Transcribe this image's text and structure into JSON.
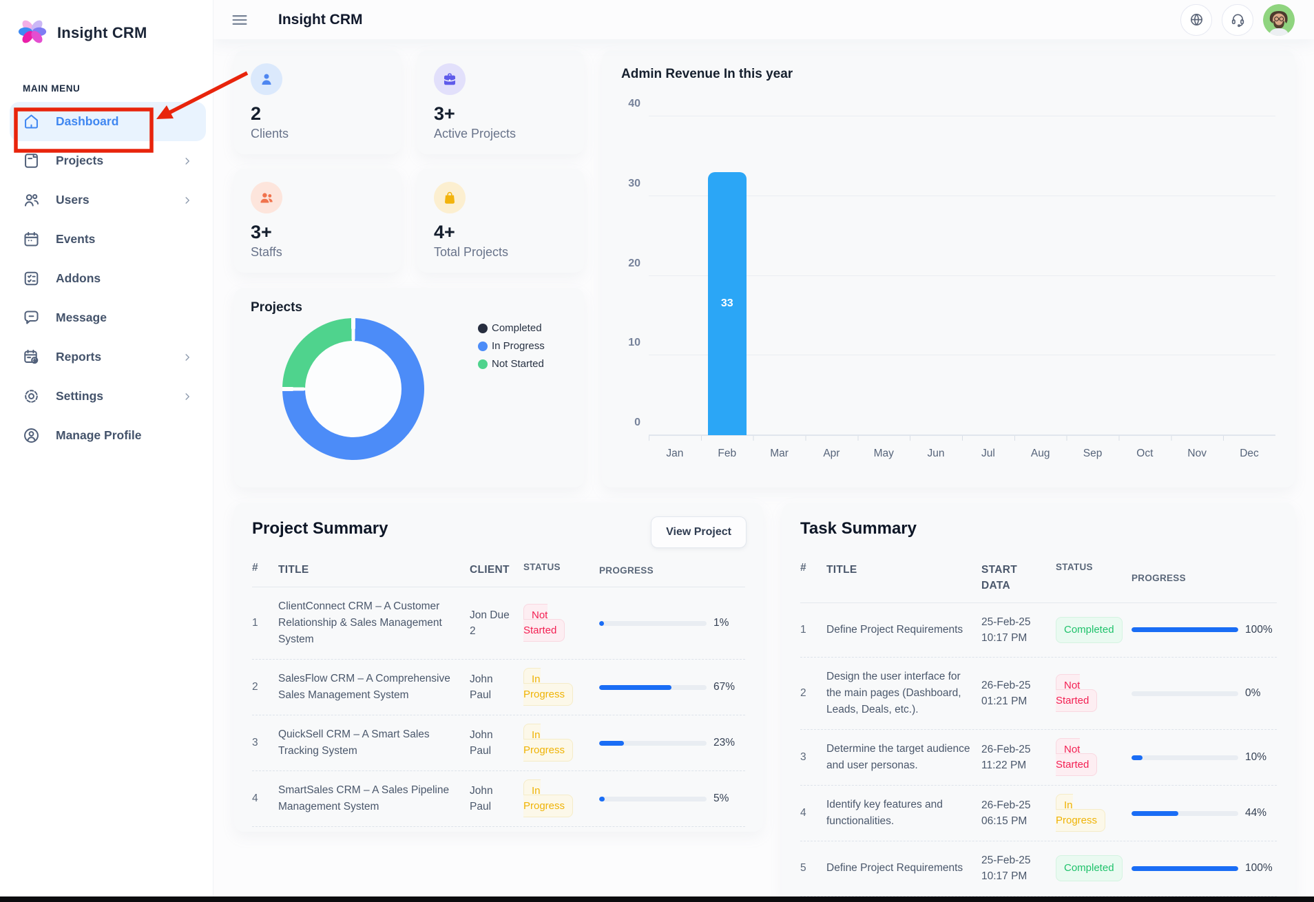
{
  "sidebar": {
    "logo_text": "Insight CRM",
    "section_label": "MAIN MENU",
    "items": [
      {
        "label": "Dashboard",
        "icon": "home",
        "active": true,
        "chevron": false
      },
      {
        "label": "Projects",
        "icon": "note",
        "active": false,
        "chevron": true
      },
      {
        "label": "Users",
        "icon": "users",
        "active": false,
        "chevron": true
      },
      {
        "label": "Events",
        "icon": "calendar",
        "active": false,
        "chevron": false
      },
      {
        "label": "Addons",
        "icon": "checklist",
        "active": false,
        "chevron": false
      },
      {
        "label": "Message",
        "icon": "chat",
        "active": false,
        "chevron": false
      },
      {
        "label": "Reports",
        "icon": "report",
        "active": false,
        "chevron": true
      },
      {
        "label": "Settings",
        "icon": "gear",
        "active": false,
        "chevron": true
      },
      {
        "label": "Manage Profile",
        "icon": "profile",
        "active": false,
        "chevron": false
      }
    ]
  },
  "header": {
    "title": "Insight CRM",
    "icons": [
      "menu-icon",
      "globe-icon",
      "headset-icon",
      "avatar"
    ]
  },
  "stats": [
    {
      "value": "2",
      "label": "Clients",
      "icon": "person",
      "icon_color": "#4e86f0",
      "icon_bg": "#dbe9fc"
    },
    {
      "value": "3+",
      "label": "Active Projects",
      "icon": "briefcase",
      "icon_color": "#5f5bea",
      "icon_bg": "#e2e0fb"
    },
    {
      "value": "3+",
      "label": "Staffs",
      "icon": "people",
      "icon_color": "#f0734d",
      "icon_bg": "#fde5dc"
    },
    {
      "value": "4+",
      "label": "Total Projects",
      "icon": "bag",
      "icon_color": "#f2b30d",
      "icon_bg": "#fcefd0"
    }
  ],
  "chart_data": [
    {
      "type": "pie",
      "donut": true,
      "title": "Projects",
      "labels": [
        "Completed",
        "In Progress",
        "Not Started"
      ],
      "values": [
        0,
        75,
        25
      ],
      "colors": [
        "#272e3f",
        "#4c8cf8",
        "#4fd38d"
      ],
      "legend_position": "right"
    },
    {
      "type": "bar",
      "title": "Admin Revenue In this year",
      "categories": [
        "Jan",
        "Feb",
        "Mar",
        "Apr",
        "May",
        "Jun",
        "Jul",
        "Aug",
        "Sep",
        "Oct",
        "Nov",
        "Dec"
      ],
      "values": [
        0,
        33,
        0,
        0,
        0,
        0,
        0,
        0,
        0,
        0,
        0,
        0
      ],
      "bar_labels": [
        "",
        "33",
        "",
        "",
        "",
        "",
        "",
        "",
        "",
        "",
        "",
        ""
      ],
      "bar_color": "#2ba6f6",
      "ylim": [
        0,
        40
      ],
      "yticks": [
        0,
        10,
        20,
        30,
        40
      ],
      "grid": true,
      "legend_position": "none"
    }
  ],
  "project_summary": {
    "title": "Project Summary",
    "button_label": "View Project",
    "columns": [
      "#",
      "TITLE",
      "CLIENT",
      "STATUS",
      "PROGRESS"
    ],
    "rows": [
      {
        "num": "1",
        "title": "ClientConnect CRM – A Customer Relationship & Sales Management System",
        "client": "Jon Due 2",
        "status": "Not Started",
        "progress": 1,
        "progress_label": "1%"
      },
      {
        "num": "2",
        "title": "SalesFlow CRM – A Comprehensive Sales Management System",
        "client": "John Paul",
        "status": "In Progress",
        "progress": 67,
        "progress_label": "67%"
      },
      {
        "num": "3",
        "title": "QuickSell CRM – A Smart Sales Tracking System",
        "client": "John Paul",
        "status": "In Progress",
        "progress": 23,
        "progress_label": "23%"
      },
      {
        "num": "4",
        "title": "SmartSales CRM – A Sales Pipeline Management System",
        "client": "John Paul",
        "status": "In Progress",
        "progress": 5,
        "progress_label": "5%"
      }
    ]
  },
  "task_summary": {
    "title": "Task Summary",
    "columns": [
      "#",
      "TITLE",
      "START DATA",
      "STATUS",
      "PROGRESS"
    ],
    "rows": [
      {
        "num": "1",
        "title": "Define Project Requirements",
        "date": "25-Feb-25",
        "time": "10:17 PM",
        "status": "Completed",
        "progress": 100,
        "progress_label": "100%"
      },
      {
        "num": "2",
        "title": "Design the user interface for the main pages (Dashboard, Leads, Deals, etc.).",
        "date": "26-Feb-25",
        "time": "01:21 PM",
        "status": "Not Started",
        "progress": 0,
        "progress_label": "0%"
      },
      {
        "num": "3",
        "title": "Determine the target audience and user personas.",
        "date": "26-Feb-25",
        "time": "11:22 PM",
        "status": "Not Started",
        "progress": 10,
        "progress_label": "10%"
      },
      {
        "num": "4",
        "title": "Identify key features and functionalities.",
        "date": "26-Feb-25",
        "time": "06:15 PM",
        "status": "In Progress",
        "progress": 44,
        "progress_label": "44%"
      },
      {
        "num": "5",
        "title": "Define Project Requirements",
        "date": "25-Feb-25",
        "time": "10:17 PM",
        "status": "Completed",
        "progress": 100,
        "progress_label": "100%"
      }
    ]
  },
  "status_styles": {
    "Completed": {
      "bg": "#eafaf1",
      "border": "#d4f3e1",
      "text": "#1fc26b"
    },
    "In Progress": {
      "bg": "#fcf8e9",
      "border": "#f5ecc8",
      "text": "#efb306"
    },
    "Not Started": {
      "bg": "#fdeef2",
      "border": "#f9d8e0",
      "text": "#f31f52"
    }
  },
  "annotation": {
    "type": "highlight-box-with-arrow",
    "target": "Dashboard",
    "color": "#e8240c"
  }
}
